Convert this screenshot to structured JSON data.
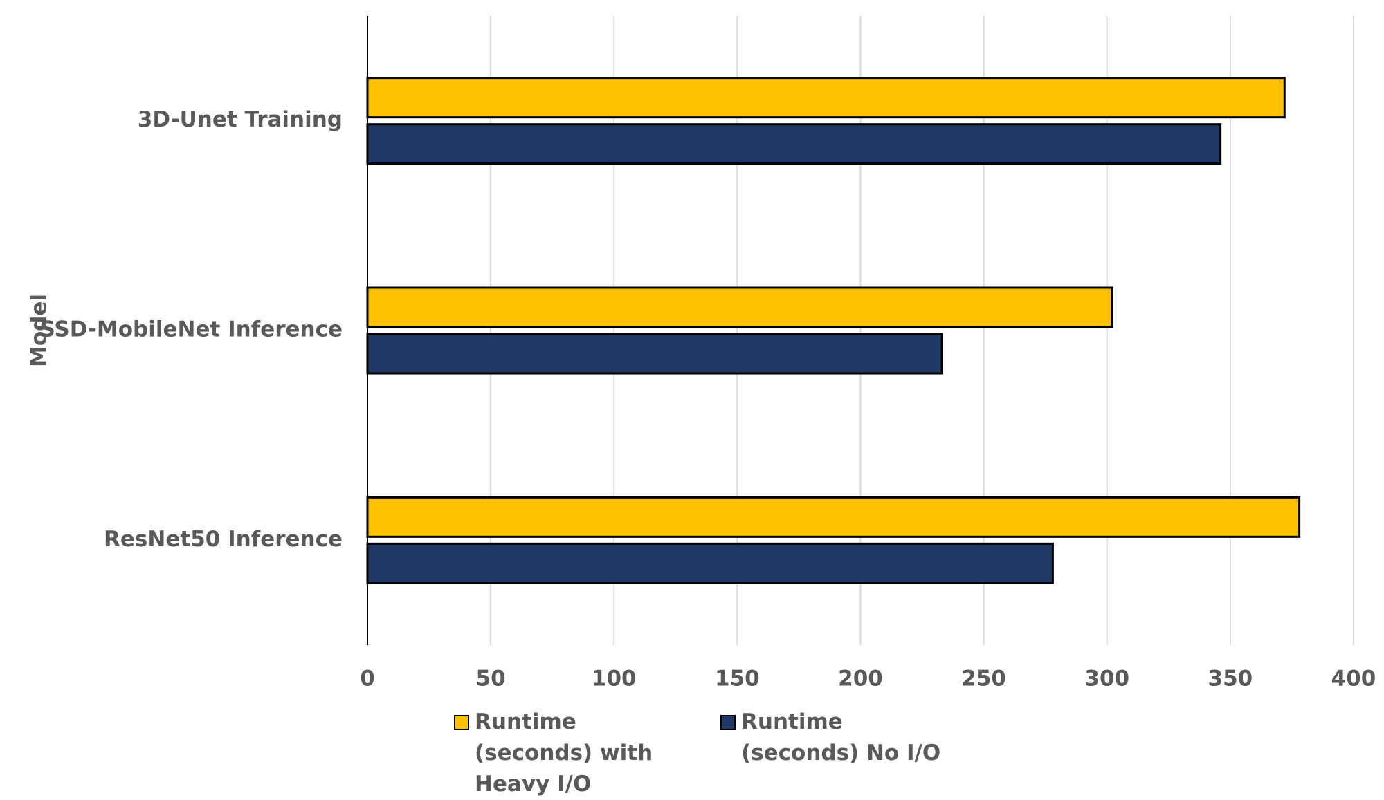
{
  "chart_data": {
    "type": "hbar",
    "y_label": "Model",
    "categories": [
      "3D-Unet Training",
      "SSD-MobileNet Inference",
      "ResNet50 Inference"
    ],
    "series": [
      {
        "name": "Runtime (seconds) with Heavy I/O",
        "color": "#FFC000",
        "values": [
          372,
          302,
          378
        ]
      },
      {
        "name": "Runtime (seconds) No I/O",
        "color": "#203864",
        "values": [
          346,
          233,
          278
        ]
      }
    ],
    "xlim": [
      0,
      400
    ],
    "xticks": [
      0,
      50,
      100,
      150,
      200,
      250,
      300,
      350,
      400
    ],
    "grid": true,
    "legend": "bottom"
  }
}
